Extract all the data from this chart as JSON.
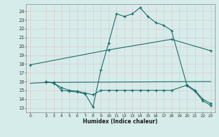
{
  "xlabel": "Humidex (Indice chaleur)",
  "bg_color": "#d6ecea",
  "grid_color": "#c8dedd",
  "line_color": "#1a6b6b",
  "xlim": [
    -0.5,
    23.5
  ],
  "ylim": [
    12.5,
    24.8
  ],
  "yticks": [
    13,
    14,
    15,
    16,
    17,
    18,
    19,
    20,
    21,
    22,
    23,
    24
  ],
  "xticks": [
    0,
    2,
    3,
    4,
    5,
    6,
    7,
    8,
    9,
    10,
    11,
    12,
    13,
    14,
    15,
    16,
    17,
    18,
    19,
    20,
    21,
    22,
    23
  ],
  "series": [
    {
      "x": [
        0,
        10,
        18,
        23
      ],
      "y": [
        17.9,
        19.6,
        20.8,
        19.5
      ],
      "marker": true,
      "linestyle": "-"
    },
    {
      "x": [
        0,
        2,
        23
      ],
      "y": [
        15.8,
        15.9,
        16.0
      ],
      "marker": false,
      "linestyle": "-"
    },
    {
      "x": [
        2,
        3,
        4,
        5,
        6,
        7,
        8,
        9,
        10,
        11,
        12,
        13,
        14,
        15,
        16,
        17,
        18,
        20,
        21,
        22,
        23
      ],
      "y": [
        15.9,
        15.9,
        15.0,
        14.9,
        14.8,
        14.6,
        13.1,
        17.3,
        20.4,
        23.7,
        23.4,
        23.7,
        24.4,
        23.4,
        22.7,
        22.4,
        21.8,
        15.5,
        14.9,
        13.8,
        13.3
      ],
      "marker": true,
      "linestyle": "-"
    },
    {
      "x": [
        2,
        3,
        4,
        5,
        6,
        7,
        8,
        9,
        10,
        11,
        12,
        13,
        14,
        15,
        16,
        17,
        18,
        20,
        21,
        22,
        23
      ],
      "y": [
        16.0,
        15.8,
        15.3,
        15.0,
        14.9,
        14.7,
        14.5,
        15.0,
        15.0,
        15.0,
        15.0,
        15.0,
        15.0,
        15.0,
        15.0,
        15.0,
        15.0,
        15.6,
        15.0,
        14.0,
        13.5
      ],
      "marker": true,
      "linestyle": "-"
    }
  ]
}
